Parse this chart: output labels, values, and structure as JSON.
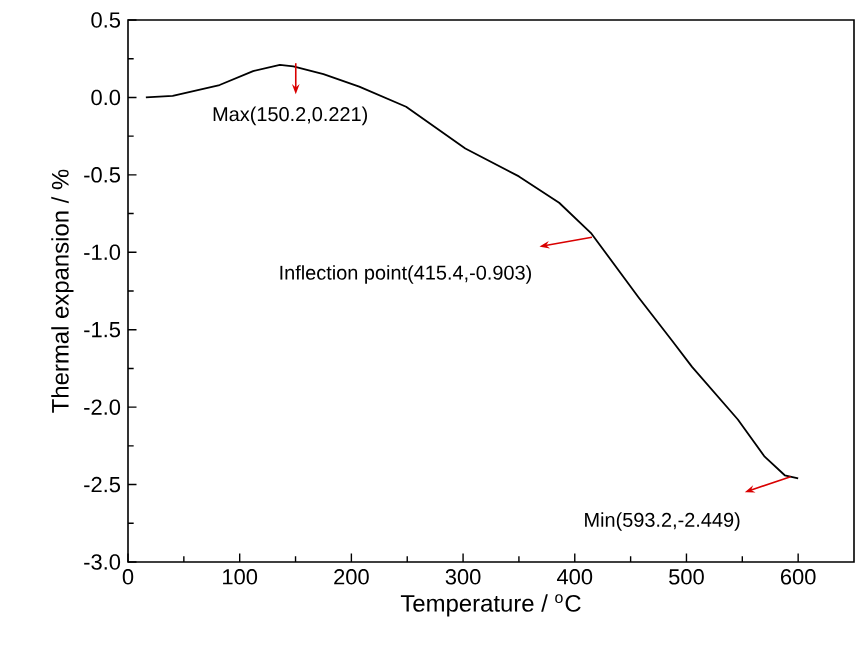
{
  "chart_data": {
    "type": "line",
    "xlabel": "Temperature / $^{o}$C",
    "ylabel": "Thermal expansion / %",
    "x": [
      16,
      40,
      82,
      112,
      136,
      148,
      175,
      207,
      249,
      302,
      350,
      386,
      415,
      457,
      487,
      505,
      546,
      570,
      588,
      600
    ],
    "series": [
      {
        "color": "#000000",
        "values": [
          0.0,
          0.01,
          0.08,
          0.17,
          0.21,
          0.2,
          0.15,
          0.07,
          -0.06,
          -0.33,
          -0.51,
          -0.68,
          -0.88,
          -1.29,
          -1.57,
          -1.74,
          -2.08,
          -2.32,
          -2.44,
          -2.46
        ]
      }
    ],
    "xlim": [
      0,
      650
    ],
    "xticks": [
      0,
      100,
      200,
      300,
      400,
      500,
      600
    ],
    "ylim": [
      -3.0,
      0.5
    ],
    "yticks": [
      {
        "value": -3.0,
        "label": "-3.0"
      },
      {
        "value": -2.5,
        "label": "-2.5"
      },
      {
        "value": -2.0,
        "label": "-2.0"
      },
      {
        "value": -1.5,
        "label": "-1.5"
      },
      {
        "value": -1.0,
        "label": "-1.0"
      },
      {
        "value": -0.5,
        "label": "-0.5"
      },
      {
        "value": 0.0,
        "label": "0.0"
      },
      {
        "value": 0.5,
        "label": "0.5"
      }
    ],
    "annotations": [
      {
        "text": "Max(150.2,0.221)",
        "x": 150.2,
        "y": 0.221
      },
      {
        "text": "Inflection point(415.4,-0.903)",
        "x": 415.4,
        "y": -0.903
      },
      {
        "text": "Min(593.2,-2.449)",
        "x": 593.2,
        "y": -2.449
      }
    ],
    "grid": false,
    "marker": "none",
    "line_style": "solid"
  }
}
